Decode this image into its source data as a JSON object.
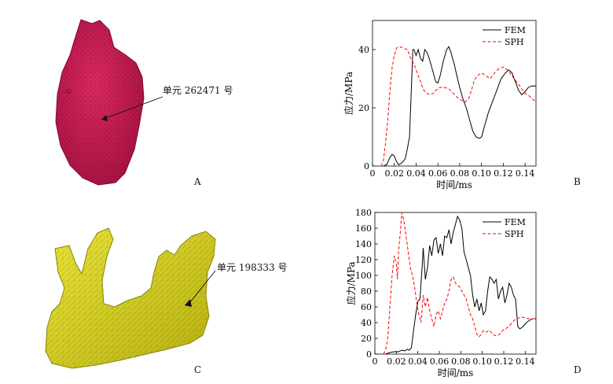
{
  "panels": {
    "a": {
      "letter": "A",
      "annotation": "单元 262471 号",
      "color": "#c8154e"
    },
    "b": {
      "letter": "B"
    },
    "c": {
      "letter": "C",
      "annotation": "单元 198333 号",
      "color": "#d6d10f"
    },
    "d": {
      "letter": "D"
    }
  },
  "chart_data": [
    {
      "type": "line",
      "panel": "B",
      "xlabel": "时间/ms",
      "ylabel": "应力/MPa",
      "xlim": [
        0,
        0.15
      ],
      "ylim": [
        0,
        50
      ],
      "xticks": [
        "0",
        "0.02",
        "0.04",
        "0.06",
        "0.08",
        "0.10",
        "0.12",
        "0.14"
      ],
      "xtick_values": [
        0,
        0.02,
        0.04,
        0.06,
        0.08,
        0.1,
        0.12,
        0.14
      ],
      "yticks": [
        "0",
        "20",
        "40"
      ],
      "ytick_values": [
        0,
        20,
        40
      ],
      "legend_position": "top-right",
      "series": [
        {
          "name": "FEM",
          "style": "solid",
          "color": "#000000",
          "points": [
            [
              0.01,
              0
            ],
            [
              0.013,
              0.5
            ],
            [
              0.016,
              3
            ],
            [
              0.018,
              4
            ],
            [
              0.02,
              3.5
            ],
            [
              0.022,
              1.5
            ],
            [
              0.024,
              0.5
            ],
            [
              0.026,
              0.8
            ],
            [
              0.028,
              1.5
            ],
            [
              0.03,
              2.5
            ],
            [
              0.032,
              6
            ],
            [
              0.034,
              10
            ],
            [
              0.035,
              20
            ],
            [
              0.036,
              30
            ],
            [
              0.037,
              40
            ],
            [
              0.038,
              40
            ],
            [
              0.04,
              38
            ],
            [
              0.042,
              40
            ],
            [
              0.044,
              37
            ],
            [
              0.046,
              36
            ],
            [
              0.048,
              40
            ],
            [
              0.05,
              39
            ],
            [
              0.052,
              37
            ],
            [
              0.055,
              33
            ],
            [
              0.058,
              29
            ],
            [
              0.06,
              28.5
            ],
            [
              0.062,
              31
            ],
            [
              0.065,
              36
            ],
            [
              0.068,
              40
            ],
            [
              0.07,
              41
            ],
            [
              0.072,
              39
            ],
            [
              0.075,
              35
            ],
            [
              0.078,
              30
            ],
            [
              0.08,
              27
            ],
            [
              0.083,
              23
            ],
            [
              0.086,
              20
            ],
            [
              0.089,
              16
            ],
            [
              0.092,
              12
            ],
            [
              0.095,
              10
            ],
            [
              0.098,
              9.5
            ],
            [
              0.1,
              10
            ],
            [
              0.103,
              14
            ],
            [
              0.106,
              18
            ],
            [
              0.11,
              22
            ],
            [
              0.114,
              26
            ],
            [
              0.118,
              30
            ],
            [
              0.122,
              32
            ],
            [
              0.125,
              33
            ],
            [
              0.128,
              32
            ],
            [
              0.131,
              29
            ],
            [
              0.134,
              26
            ],
            [
              0.137,
              24.5
            ],
            [
              0.14,
              25.5
            ],
            [
              0.143,
              27
            ],
            [
              0.146,
              27.5
            ],
            [
              0.15,
              27.5
            ]
          ]
        },
        {
          "name": "SPH",
          "style": "dashed",
          "color": "#ff0000",
          "points": [
            [
              0.008,
              0
            ],
            [
              0.01,
              2
            ],
            [
              0.012,
              8
            ],
            [
              0.014,
              16
            ],
            [
              0.016,
              26
            ],
            [
              0.018,
              34
            ],
            [
              0.02,
              38
            ],
            [
              0.022,
              40.5
            ],
            [
              0.025,
              41
            ],
            [
              0.028,
              40.5
            ],
            [
              0.032,
              40
            ],
            [
              0.035,
              37
            ],
            [
              0.038,
              35
            ],
            [
              0.041,
              32
            ],
            [
              0.044,
              29
            ],
            [
              0.047,
              26
            ],
            [
              0.05,
              25
            ],
            [
              0.053,
              24.5
            ],
            [
              0.056,
              25
            ],
            [
              0.058,
              26
            ],
            [
              0.062,
              27
            ],
            [
              0.066,
              27
            ],
            [
              0.07,
              26.5
            ],
            [
              0.074,
              25
            ],
            [
              0.078,
              23.5
            ],
            [
              0.082,
              22.5
            ],
            [
              0.085,
              22
            ],
            [
              0.088,
              23
            ],
            [
              0.09,
              25
            ],
            [
              0.093,
              29
            ],
            [
              0.096,
              31
            ],
            [
              0.1,
              32
            ],
            [
              0.104,
              31
            ],
            [
              0.108,
              30
            ],
            [
              0.112,
              32
            ],
            [
              0.116,
              33.5
            ],
            [
              0.12,
              34
            ],
            [
              0.124,
              33
            ],
            [
              0.128,
              31
            ],
            [
              0.132,
              29
            ],
            [
              0.136,
              27
            ],
            [
              0.14,
              25
            ],
            [
              0.144,
              24
            ],
            [
              0.147,
              23
            ],
            [
              0.15,
              22
            ]
          ]
        }
      ]
    },
    {
      "type": "line",
      "panel": "D",
      "xlabel": "时间/ms",
      "ylabel": "应力/MPa",
      "xlim": [
        0,
        0.15
      ],
      "ylim": [
        0,
        180
      ],
      "xticks": [
        "0",
        "0.02",
        "0.04",
        "0.06",
        "0.08",
        "0.10",
        "0.12",
        "0.14"
      ],
      "xtick_values": [
        0,
        0.02,
        0.04,
        0.06,
        0.08,
        0.1,
        0.12,
        0.14
      ],
      "yticks": [
        "0",
        "20",
        "40",
        "60",
        "80",
        "100",
        "120",
        "140",
        "160",
        "180"
      ],
      "ytick_values": [
        0,
        20,
        40,
        60,
        80,
        100,
        120,
        140,
        160,
        180
      ],
      "legend_position": "top-right",
      "series": [
        {
          "name": "FEM",
          "style": "solid",
          "color": "#000000",
          "points": [
            [
              0.01,
              0
            ],
            [
              0.014,
              2
            ],
            [
              0.018,
              3
            ],
            [
              0.022,
              3
            ],
            [
              0.025,
              5
            ],
            [
              0.028,
              4
            ],
            [
              0.03,
              6
            ],
            [
              0.032,
              5
            ],
            [
              0.034,
              8
            ],
            [
              0.036,
              30
            ],
            [
              0.038,
              50
            ],
            [
              0.04,
              67
            ],
            [
              0.042,
              70
            ],
            [
              0.044,
              110
            ],
            [
              0.045,
              135
            ],
            [
              0.047,
              95
            ],
            [
              0.049,
              110
            ],
            [
              0.051,
              138
            ],
            [
              0.053,
              125
            ],
            [
              0.055,
              145
            ],
            [
              0.057,
              148
            ],
            [
              0.059,
              128
            ],
            [
              0.061,
              140
            ],
            [
              0.063,
              125
            ],
            [
              0.065,
              150
            ],
            [
              0.067,
              148
            ],
            [
              0.069,
              158
            ],
            [
              0.071,
              140
            ],
            [
              0.073,
              155
            ],
            [
              0.075,
              165
            ],
            [
              0.077,
              175
            ],
            [
              0.079,
              170
            ],
            [
              0.081,
              160
            ],
            [
              0.083,
              130
            ],
            [
              0.085,
              120
            ],
            [
              0.087,
              110
            ],
            [
              0.089,
              100
            ],
            [
              0.091,
              75
            ],
            [
              0.093,
              60
            ],
            [
              0.095,
              70
            ],
            [
              0.097,
              55
            ],
            [
              0.099,
              65
            ],
            [
              0.101,
              50
            ],
            [
              0.103,
              55
            ],
            [
              0.105,
              80
            ],
            [
              0.107,
              98
            ],
            [
              0.109,
              95
            ],
            [
              0.111,
              90
            ],
            [
              0.113,
              95
            ],
            [
              0.115,
              70
            ],
            [
              0.117,
              80
            ],
            [
              0.119,
              85
            ],
            [
              0.121,
              65
            ],
            [
              0.123,
              75
            ],
            [
              0.125,
              90
            ],
            [
              0.127,
              85
            ],
            [
              0.129,
              75
            ],
            [
              0.131,
              70
            ],
            [
              0.133,
              35
            ],
            [
              0.135,
              32
            ],
            [
              0.138,
              35
            ],
            [
              0.141,
              40
            ],
            [
              0.144,
              43
            ],
            [
              0.147,
              45
            ],
            [
              0.15,
              45
            ]
          ]
        },
        {
          "name": "SPH",
          "style": "dashed",
          "color": "#ff0000",
          "points": [
            [
              0.008,
              0
            ],
            [
              0.01,
              5
            ],
            [
              0.012,
              20
            ],
            [
              0.014,
              60
            ],
            [
              0.016,
              100
            ],
            [
              0.018,
              125
            ],
            [
              0.02,
              115
            ],
            [
              0.021,
              95
            ],
            [
              0.022,
              130
            ],
            [
              0.024,
              160
            ],
            [
              0.025,
              180
            ],
            [
              0.027,
              170
            ],
            [
              0.029,
              150
            ],
            [
              0.031,
              130
            ],
            [
              0.033,
              110
            ],
            [
              0.035,
              100
            ],
            [
              0.037,
              85
            ],
            [
              0.039,
              65
            ],
            [
              0.041,
              50
            ],
            [
              0.043,
              40
            ],
            [
              0.045,
              75
            ],
            [
              0.047,
              60
            ],
            [
              0.049,
              72
            ],
            [
              0.051,
              55
            ],
            [
              0.053,
              45
            ],
            [
              0.055,
              35
            ],
            [
              0.057,
              50
            ],
            [
              0.059,
              55
            ],
            [
              0.061,
              45
            ],
            [
              0.063,
              55
            ],
            [
              0.065,
              65
            ],
            [
              0.067,
              70
            ],
            [
              0.069,
              80
            ],
            [
              0.071,
              95
            ],
            [
              0.073,
              98
            ],
            [
              0.075,
              90
            ],
            [
              0.077,
              88
            ],
            [
              0.079,
              85
            ],
            [
              0.081,
              80
            ],
            [
              0.083,
              75
            ],
            [
              0.085,
              70
            ],
            [
              0.087,
              60
            ],
            [
              0.089,
              50
            ],
            [
              0.091,
              45
            ],
            [
              0.093,
              35
            ],
            [
              0.095,
              25
            ],
            [
              0.097,
              22
            ],
            [
              0.099,
              25
            ],
            [
              0.101,
              30
            ],
            [
              0.104,
              28
            ],
            [
              0.107,
              30
            ],
            [
              0.11,
              25
            ],
            [
              0.113,
              23
            ],
            [
              0.116,
              25
            ],
            [
              0.119,
              30
            ],
            [
              0.122,
              32
            ],
            [
              0.125,
              36
            ],
            [
              0.128,
              40
            ],
            [
              0.131,
              45
            ],
            [
              0.134,
              46
            ],
            [
              0.137,
              47
            ],
            [
              0.14,
              46
            ],
            [
              0.143,
              45
            ],
            [
              0.146,
              45
            ],
            [
              0.15,
              45
            ]
          ]
        }
      ]
    }
  ]
}
